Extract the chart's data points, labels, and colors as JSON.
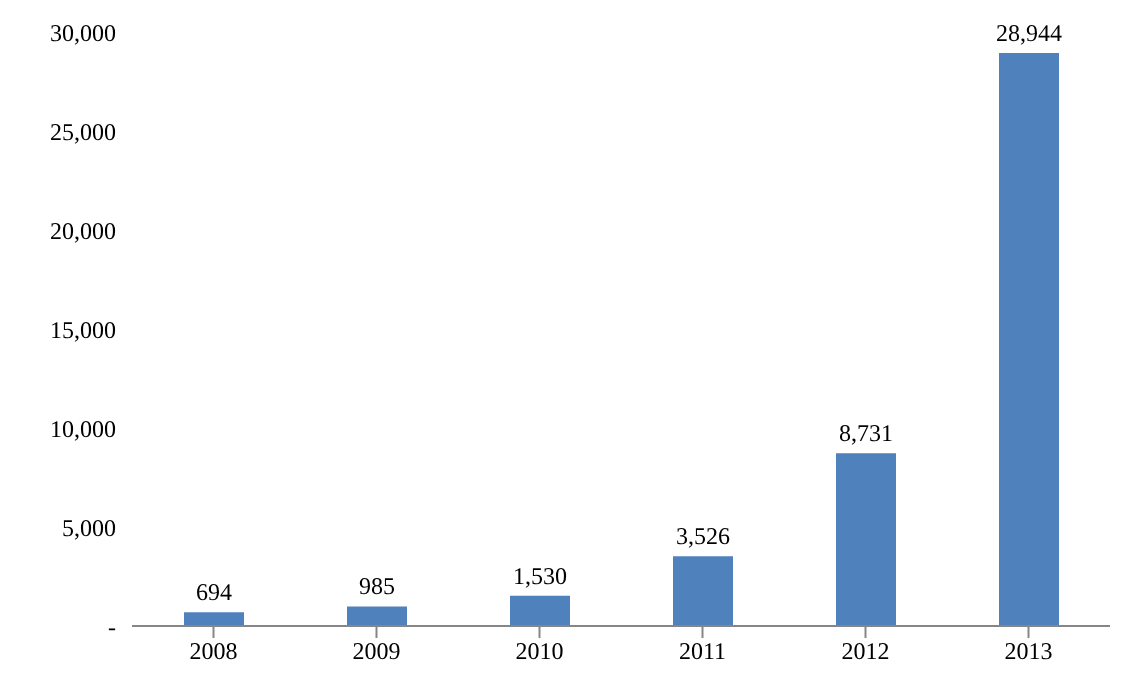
{
  "chart_data": {
    "type": "bar",
    "categories": [
      "2008",
      "2009",
      "2010",
      "2011",
      "2012",
      "2013"
    ],
    "values": [
      694,
      985,
      1530,
      3526,
      8731,
      28944
    ],
    "color": "#4f81bd",
    "ylim": [
      0,
      30000
    ],
    "yticks": [
      {
        "value": 0,
        "label": "-"
      },
      {
        "value": 5000,
        "label": "5,000"
      },
      {
        "value": 10000,
        "label": "10,000"
      },
      {
        "value": 15000,
        "label": "15,000"
      },
      {
        "value": 20000,
        "label": "20,000"
      },
      {
        "value": 25000,
        "label": "25,000"
      },
      {
        "value": 30000,
        "label": "30,000"
      }
    ],
    "value_labels": [
      "694",
      "985",
      "1,530",
      "3,526",
      "8,731",
      "28,944"
    ],
    "grid": false,
    "legend": false
  }
}
